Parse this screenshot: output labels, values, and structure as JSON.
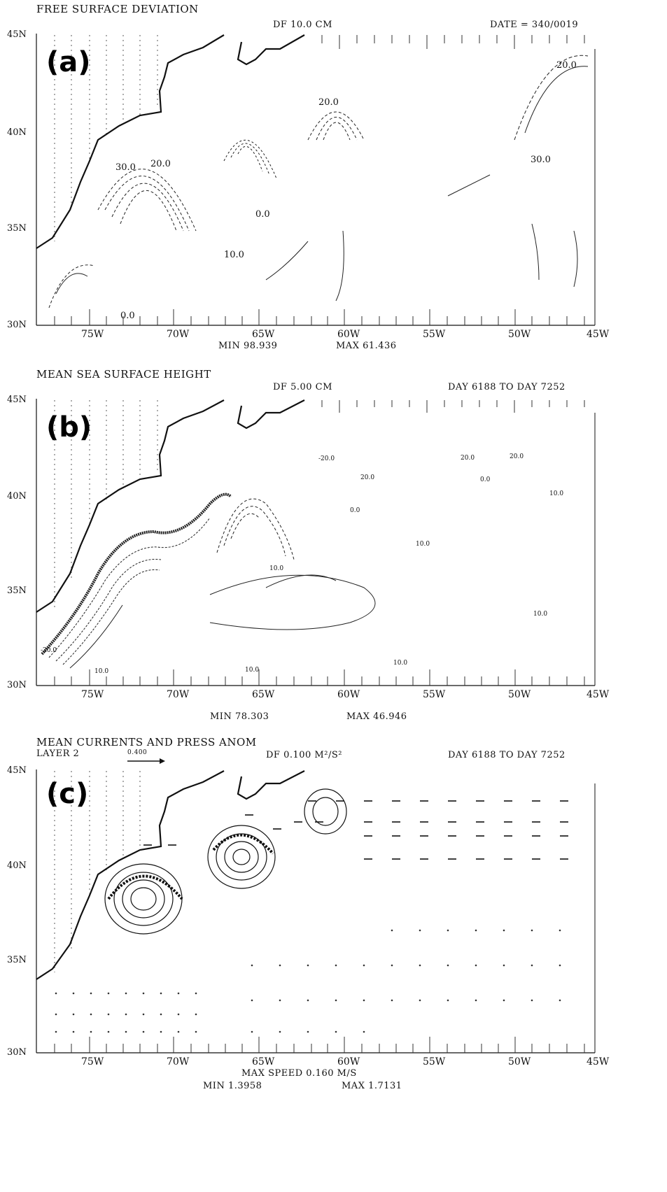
{
  "lat_labels": [
    "45N",
    "40N",
    "35N",
    "30N"
  ],
  "lon_labels": [
    "75W",
    "70W",
    "65W",
    "60W",
    "55W",
    "50W",
    "45W"
  ],
  "panels": [
    {
      "id": "a",
      "label": "(a)",
      "title": "FREE SURFACE DEVIATION",
      "df": "DF      10.0 CM",
      "right_info": "DATE = 340/0019",
      "min_text": "MIN      98.939",
      "max_text": "MAX      61.436",
      "contour_labels": [
        "30.0",
        "20.0",
        "10.0",
        "0.0"
      ]
    },
    {
      "id": "b",
      "label": "(b)",
      "title": "MEAN SEA SURFACE HEIGHT",
      "df": "DF      5.00 CM",
      "right_info": "DAY  6188 TO DAY  7252",
      "min_text": "MIN      78.303",
      "max_text": "MAX      46.946",
      "contour_labels": [
        "-20.0",
        "20.0",
        "0.0",
        "10.0"
      ]
    },
    {
      "id": "c",
      "label": "(c)",
      "title": "MEAN CURRENTS AND PRESS ANOM",
      "layer": "LAYER     2",
      "ref_vector": "0.400",
      "df": "DF      0.100 M²/S²",
      "right_info": "DAY  6188 TO DAY  7252",
      "max_speed": "MAX SPEED      0.160 M/S",
      "min_text": "MIN      1.3958",
      "max_text": "MAX      1.7131"
    }
  ],
  "colors": {
    "ink": "#111111",
    "background": "#ffffff",
    "land_hatch": "#333333"
  }
}
